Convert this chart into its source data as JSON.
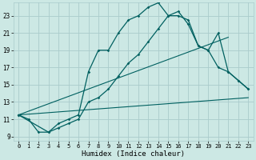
{
  "xlabel": "Humidex (Indice chaleur)",
  "bg_color": "#cce8e4",
  "grid_color": "#aacccc",
  "line_color": "#006060",
  "xlim": [
    -0.5,
    23.5
  ],
  "ylim": [
    8.5,
    24.5
  ],
  "yticks": [
    9,
    11,
    13,
    15,
    17,
    19,
    21,
    23
  ],
  "xticks": [
    0,
    1,
    2,
    3,
    4,
    5,
    6,
    7,
    8,
    9,
    10,
    11,
    12,
    13,
    14,
    15,
    16,
    17,
    18,
    19,
    20,
    21,
    22,
    23
  ],
  "curve1_x": [
    0,
    1,
    2,
    3,
    4,
    5,
    6,
    7,
    8,
    9,
    10,
    11,
    12,
    13,
    14,
    15,
    16,
    17,
    18,
    19,
    20,
    21,
    22,
    23
  ],
  "curve1_y": [
    11.5,
    11.0,
    9.5,
    9.5,
    10.5,
    11.0,
    11.5,
    16.5,
    19.0,
    19.0,
    21.0,
    22.5,
    23.0,
    24.0,
    24.5,
    23.0,
    23.0,
    22.5,
    19.5,
    19.0,
    21.0,
    16.5,
    15.5,
    14.5
  ],
  "curve2_x": [
    0,
    3,
    4,
    5,
    6,
    7,
    8,
    9,
    10,
    11,
    12,
    13,
    14,
    15,
    16,
    17,
    18,
    19,
    20,
    21,
    22,
    23
  ],
  "curve2_y": [
    11.5,
    9.5,
    10.0,
    10.5,
    11.0,
    13.0,
    13.5,
    14.5,
    16.0,
    17.5,
    18.5,
    20.0,
    21.5,
    23.0,
    23.5,
    22.0,
    19.5,
    19.0,
    17.0,
    16.5,
    15.5,
    14.5
  ],
  "line1_x": [
    0,
    23
  ],
  "line1_y": [
    11.5,
    13.5
  ],
  "line2_x": [
    0,
    21
  ],
  "line2_y": [
    11.5,
    20.5
  ]
}
